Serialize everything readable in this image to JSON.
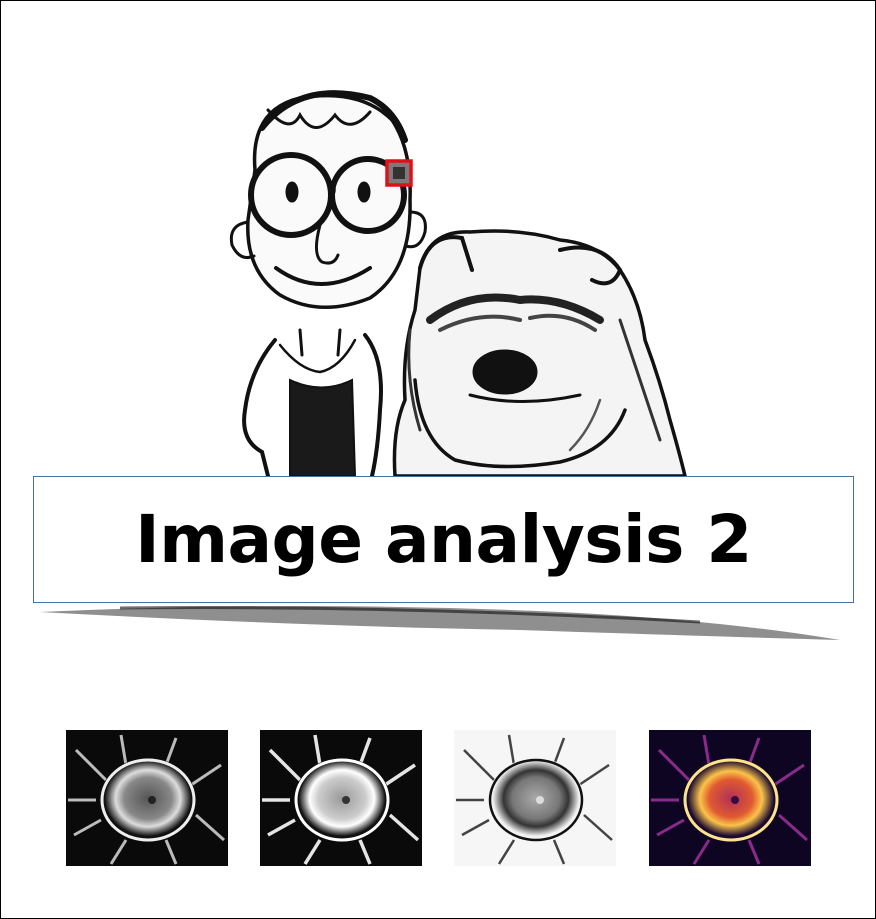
{
  "title": "Image analysis 2",
  "colors": {
    "title_box_border": "#4a6fa5",
    "highlight_box": "#e0101a",
    "background": "#ffffff"
  },
  "illustration": {
    "subject": "pencil sketch of boy with round glasses and a bulldog",
    "highlight": "red square around glasses detail"
  },
  "thumbnails": [
    {
      "style": "grayscale-dark"
    },
    {
      "style": "grayscale-dark-enhanced"
    },
    {
      "style": "grayscale-inverted"
    },
    {
      "style": "inferno-colormap"
    }
  ]
}
